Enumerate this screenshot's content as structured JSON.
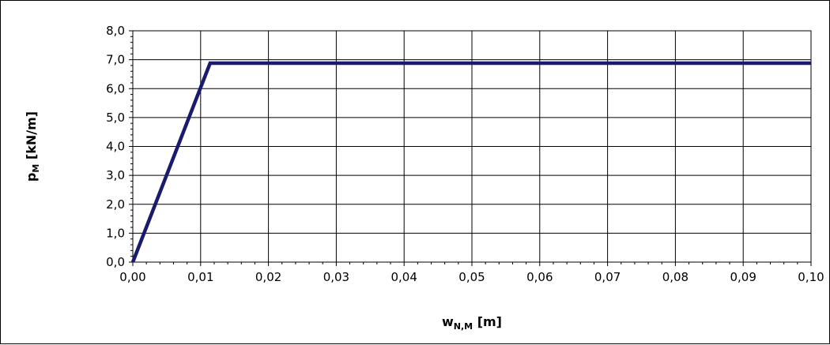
{
  "chart_data": {
    "type": "line",
    "title": "",
    "xlabel": {
      "main": "w",
      "sub": "N,M",
      "unit": " [m]"
    },
    "ylabel": {
      "main": "p",
      "sub": "M",
      "unit": " [kN/m]"
    },
    "xlim": [
      0.0,
      0.1
    ],
    "ylim": [
      0.0,
      8.0
    ],
    "x_ticks": [
      "0,00",
      "0,01",
      "0,02",
      "0,03",
      "0,04",
      "0,05",
      "0,06",
      "0,07",
      "0,08",
      "0,09",
      "0,10"
    ],
    "y_ticks": [
      "0,0",
      "1,0",
      "2,0",
      "3,0",
      "4,0",
      "5,0",
      "6,0",
      "7,0",
      "8,0"
    ],
    "grid": true,
    "legend": "none",
    "series": [
      {
        "color": "#1a1a6e",
        "points": [
          {
            "x": 0.0,
            "y": 0.0
          },
          {
            "x": 0.0114,
            "y": 6.88
          },
          {
            "x": 0.1,
            "y": 6.88
          }
        ]
      }
    ]
  }
}
